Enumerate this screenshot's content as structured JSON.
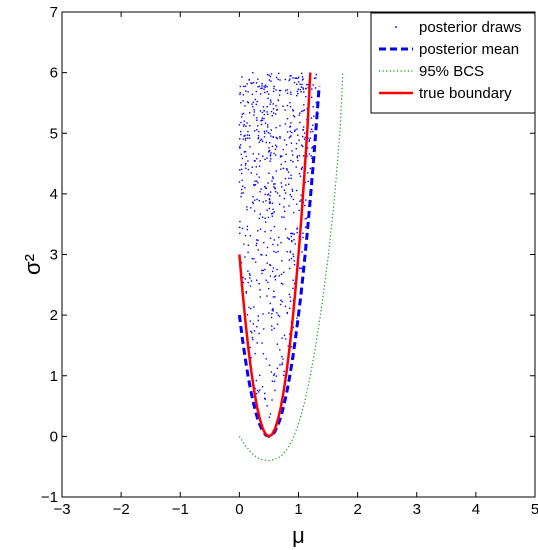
{
  "chart_data": {
    "type": "scatter",
    "title": "",
    "xlabel": "μ",
    "ylabel": "σ²",
    "xlim": [
      -3,
      5
    ],
    "ylim": [
      -1,
      7
    ],
    "xticks": [
      -3,
      -2,
      -1,
      0,
      1,
      2,
      3,
      4,
      5
    ],
    "yticks": [
      -1,
      0,
      1,
      2,
      3,
      4,
      5,
      6,
      7
    ],
    "xtick_labels": [
      "−3",
      "−2",
      "−1",
      "0",
      "1",
      "2",
      "3",
      "4",
      "5"
    ],
    "ytick_labels": [
      "−1",
      "0",
      "1",
      "2",
      "3",
      "4",
      "5",
      "6",
      "7"
    ],
    "grid": false,
    "legend_position": "top-right",
    "series": [
      {
        "name": "posterior draws",
        "style": "dots",
        "color": "#0000ff",
        "count": 700,
        "sigma2_range": [
          0.05,
          6.0
        ],
        "mu_min_at_sigma2": {
          "sigma2": [
            0,
            0.5,
            1,
            2,
            3,
            4,
            5,
            6
          ],
          "mu": [
            0.45,
            0.3,
            0.2,
            0.05,
            0.0,
            0.0,
            0.0,
            0.0
          ]
        },
        "mu_max_at_sigma2": {
          "sigma2": [
            0,
            0.5,
            1,
            2,
            3,
            4,
            5,
            6
          ],
          "mu": [
            0.55,
            0.75,
            0.85,
            1.0,
            1.1,
            1.2,
            1.3,
            1.35
          ]
        }
      },
      {
        "name": "posterior mean",
        "style": "dashed",
        "color": "#0000ff",
        "x": [
          0.0,
          0.05,
          0.1,
          0.15,
          0.2,
          0.25,
          0.3,
          0.35,
          0.4,
          0.45,
          0.5,
          0.55,
          0.6,
          0.65,
          0.7,
          0.75,
          0.8,
          0.85,
          0.9,
          0.95,
          1.0,
          1.05,
          1.1,
          1.15,
          1.2,
          1.25,
          1.3,
          1.35
        ],
        "y": [
          2.0,
          1.62,
          1.28,
          0.98,
          0.72,
          0.5,
          0.32,
          0.18,
          0.08,
          0.02,
          0.0,
          0.02,
          0.08,
          0.18,
          0.32,
          0.5,
          0.72,
          0.98,
          1.28,
          1.62,
          2.0,
          2.42,
          2.88,
          3.38,
          3.92,
          4.5,
          5.12,
          5.78
        ]
      },
      {
        "name": "95% BCS",
        "style": "dotted",
        "color": "#00a000",
        "x": [
          0.0,
          0.1,
          0.2,
          0.3,
          0.4,
          0.5,
          0.6,
          0.7,
          0.8,
          0.9,
          1.0,
          1.1,
          1.2,
          1.3,
          1.4,
          1.5,
          1.6,
          1.7,
          1.75
        ],
        "y": [
          0.0,
          -0.15,
          -0.27,
          -0.35,
          -0.39,
          -0.4,
          -0.38,
          -0.33,
          -0.22,
          -0.05,
          0.2,
          0.55,
          1.0,
          1.55,
          2.2,
          2.95,
          3.85,
          5.0,
          6.0
        ]
      },
      {
        "name": "true boundary",
        "style": "solid",
        "color": "#ff0000",
        "x": [
          0.0,
          0.05,
          0.1,
          0.15,
          0.2,
          0.25,
          0.3,
          0.35,
          0.4,
          0.45,
          0.5,
          0.55,
          0.6,
          0.65,
          0.7,
          0.75,
          0.8,
          0.85,
          0.9,
          0.95,
          1.0,
          1.05,
          1.1,
          1.15,
          1.2
        ],
        "y": [
          3.0,
          2.43,
          1.92,
          1.47,
          1.08,
          0.75,
          0.48,
          0.27,
          0.12,
          0.03,
          0.0,
          0.03,
          0.12,
          0.27,
          0.48,
          0.75,
          1.08,
          1.47,
          1.92,
          2.43,
          3.0,
          3.63,
          4.32,
          5.07,
          6.0
        ]
      }
    ]
  }
}
